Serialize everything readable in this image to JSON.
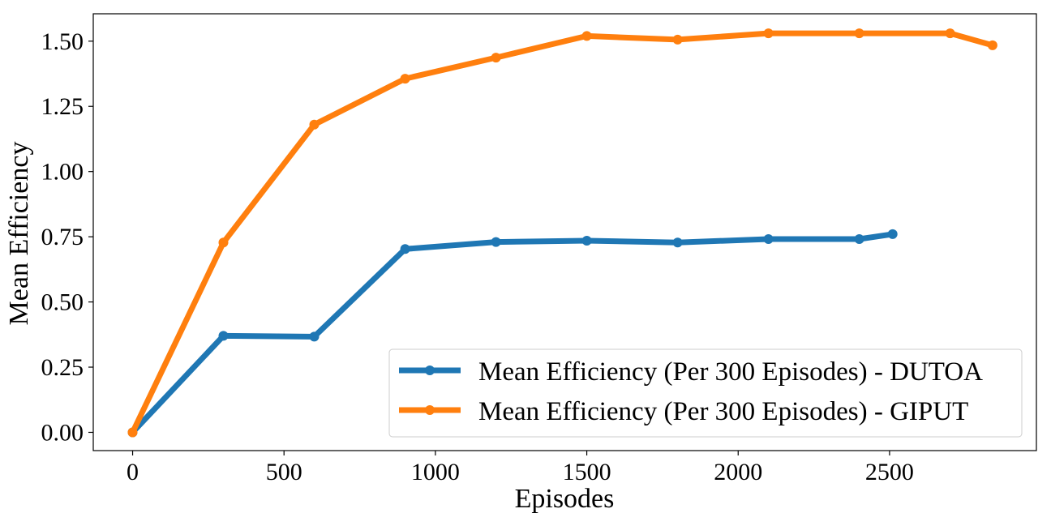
{
  "chart_data": {
    "type": "line",
    "title": "",
    "xlabel": "Episodes",
    "ylabel": "Mean Efficiency",
    "xlim": [
      -130,
      2985
    ],
    "ylim": [
      -0.07,
      1.605
    ],
    "xticks": [
      0,
      500,
      1000,
      1500,
      2000,
      2500
    ],
    "xtick_labels": [
      "0",
      "500",
      "1000",
      "1500",
      "2000",
      "2500"
    ],
    "yticks": [
      0.0,
      0.25,
      0.5,
      0.75,
      1.0,
      1.25,
      1.5
    ],
    "ytick_labels": [
      "0.00",
      "0.25",
      "0.50",
      "0.75",
      "1.00",
      "1.25",
      "1.50"
    ],
    "grid": false,
    "legend_position": "lower-right",
    "series": [
      {
        "name": "Mean Efficiency (Per 300 Episodes) - DUTOA",
        "color": "#1f77b4",
        "x": [
          0,
          300,
          600,
          900,
          1200,
          1500,
          1800,
          2100,
          2400,
          2510
        ],
        "y": [
          0.0,
          0.37,
          0.367,
          0.703,
          0.73,
          0.735,
          0.728,
          0.741,
          0.741,
          0.76
        ]
      },
      {
        "name": "Mean Efficiency (Per 300 Episodes) - GIPUT",
        "color": "#ff7f0e",
        "x": [
          0,
          300,
          600,
          900,
          1200,
          1500,
          1800,
          2100,
          2400,
          2700,
          2840
        ],
        "y": [
          0.0,
          0.728,
          1.18,
          1.356,
          1.437,
          1.52,
          1.506,
          1.53,
          1.53,
          1.53,
          1.484
        ]
      }
    ]
  }
}
